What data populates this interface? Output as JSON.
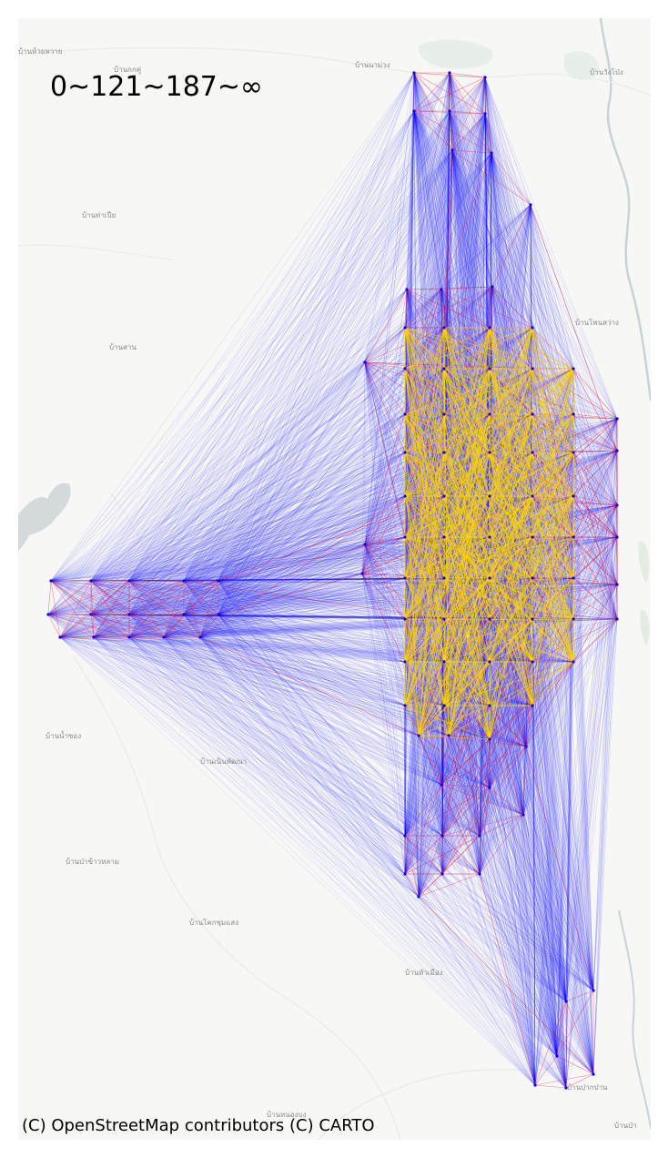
{
  "map": {
    "legend_title": "0~121~187~∞",
    "attribution": "(C) OpenStreetMap contributors (C) CARTO",
    "basemap": "CARTO light",
    "edge_colors": {
      "low": "#0000ff",
      "mid": "#e8142a",
      "high": "#ffd700"
    },
    "place_labels": [
      "บ้านห้วยหวาย",
      "บ้านกกคู่",
      "บ้านนาม่วง",
      "บ้านวังโป่ง",
      "บ้านท่าเปีย",
      "บ้านสาน",
      "บ้านโพนสว่าง",
      "บ้านน้ำซอง",
      "บ้านเนินพัฒนา",
      "บ้านป่าข้าวหลาม",
      "บ้านโคกชุมแสง",
      "บ้านหัวเมือง",
      "บ้านปากปาน",
      "บ้านหนองบง",
      "บ้านป่า"
    ]
  }
}
